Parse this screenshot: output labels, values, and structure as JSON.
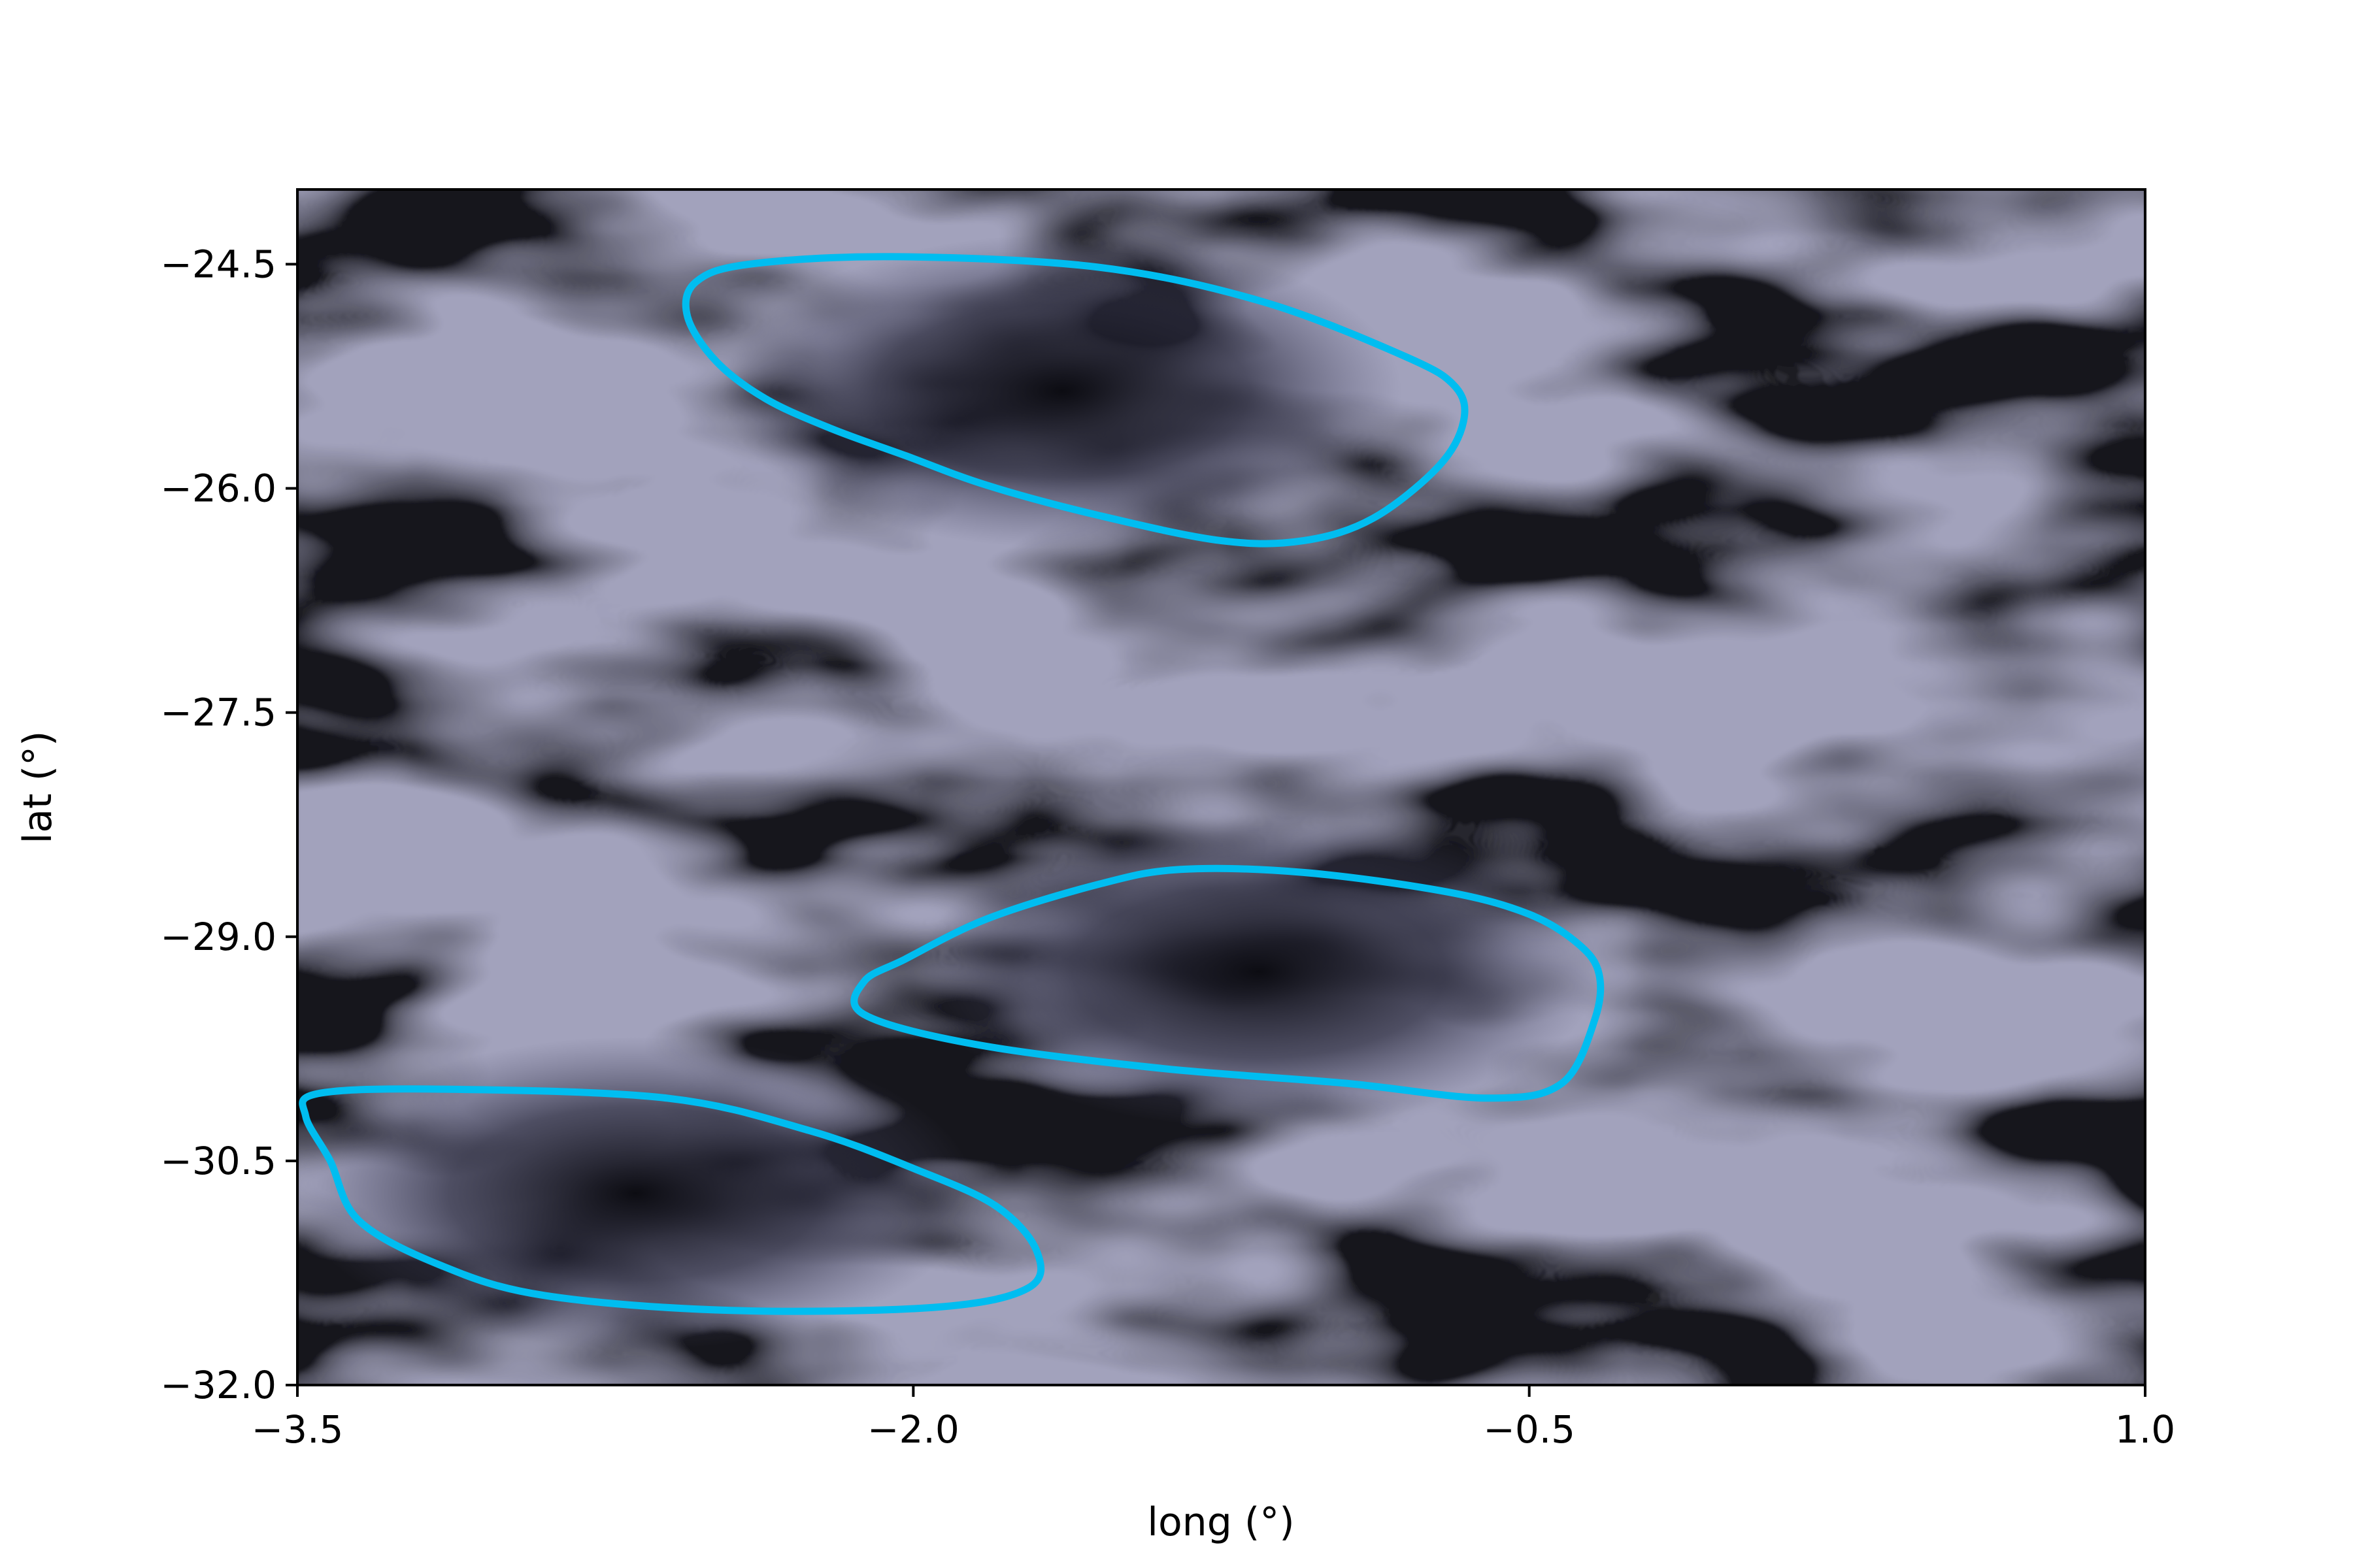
{
  "chart_data": {
    "type": "heatmap",
    "title": "",
    "xlabel": "long (°)",
    "ylabel": "lat (°)",
    "xlim": [
      -3.5,
      1.0
    ],
    "ylim": [
      -32.0,
      -24.0
    ],
    "xticks": [
      -3.5,
      -2.0,
      -0.5,
      1.0
    ],
    "xtick_labels": [
      "−3.5",
      "−2.0",
      "−0.5",
      "1.0"
    ],
    "yticks": [
      -32.0,
      -30.5,
      -29.0,
      -27.5,
      -26.0,
      -24.5
    ],
    "ytick_labels": [
      "−32.0",
      "−30.5",
      "−29.0",
      "−27.5",
      "−26.0",
      "−24.5"
    ],
    "colormap": "bone",
    "grid": false,
    "background_field": "dark grey-blue filamentary field with swirling eddies",
    "contours": [
      {
        "color": "#00bdf0",
        "points": [
          [
            -2.05,
            -24.45
          ],
          [
            -1.55,
            -24.52
          ],
          [
            -1.15,
            -24.75
          ],
          [
            -0.8,
            -25.12
          ],
          [
            -0.68,
            -25.32
          ],
          [
            -0.66,
            -25.55
          ],
          [
            -0.72,
            -25.85
          ],
          [
            -0.88,
            -26.2
          ],
          [
            -1.05,
            -26.35
          ],
          [
            -1.25,
            -26.35
          ],
          [
            -1.55,
            -26.18
          ],
          [
            -1.82,
            -25.98
          ],
          [
            -2.02,
            -25.78
          ],
          [
            -2.2,
            -25.6
          ],
          [
            -2.36,
            -25.4
          ],
          [
            -2.48,
            -25.15
          ],
          [
            -2.55,
            -24.85
          ],
          [
            -2.53,
            -24.62
          ],
          [
            -2.4,
            -24.5
          ],
          [
            -2.05,
            -24.45
          ]
        ]
      },
      {
        "color": "#00bdf0",
        "points": [
          [
            -1.35,
            -28.55
          ],
          [
            -1.05,
            -28.57
          ],
          [
            -0.7,
            -28.7
          ],
          [
            -0.5,
            -28.85
          ],
          [
            -0.38,
            -29.05
          ],
          [
            -0.33,
            -29.25
          ],
          [
            -0.34,
            -29.55
          ],
          [
            -0.42,
            -29.98
          ],
          [
            -0.6,
            -30.08
          ],
          [
            -0.95,
            -29.98
          ],
          [
            -1.4,
            -29.88
          ],
          [
            -1.85,
            -29.72
          ],
          [
            -2.12,
            -29.52
          ],
          [
            -2.12,
            -29.3
          ],
          [
            -2.02,
            -29.15
          ],
          [
            -1.82,
            -28.88
          ],
          [
            -1.55,
            -28.65
          ],
          [
            -1.35,
            -28.55
          ]
        ]
      },
      {
        "color": "#00bdf0",
        "points": [
          [
            -3.45,
            -30.05
          ],
          [
            -3.15,
            -30.02
          ],
          [
            -2.6,
            -30.08
          ],
          [
            -2.25,
            -30.3
          ],
          [
            -2.0,
            -30.55
          ],
          [
            -1.8,
            -30.8
          ],
          [
            -1.7,
            -31.1
          ],
          [
            -1.72,
            -31.35
          ],
          [
            -1.95,
            -31.48
          ],
          [
            -2.45,
            -31.5
          ],
          [
            -2.9,
            -31.4
          ],
          [
            -3.15,
            -31.2
          ],
          [
            -3.35,
            -30.9
          ],
          [
            -3.42,
            -30.5
          ],
          [
            -3.48,
            -30.2
          ],
          [
            -3.45,
            -30.05
          ]
        ]
      }
    ]
  }
}
